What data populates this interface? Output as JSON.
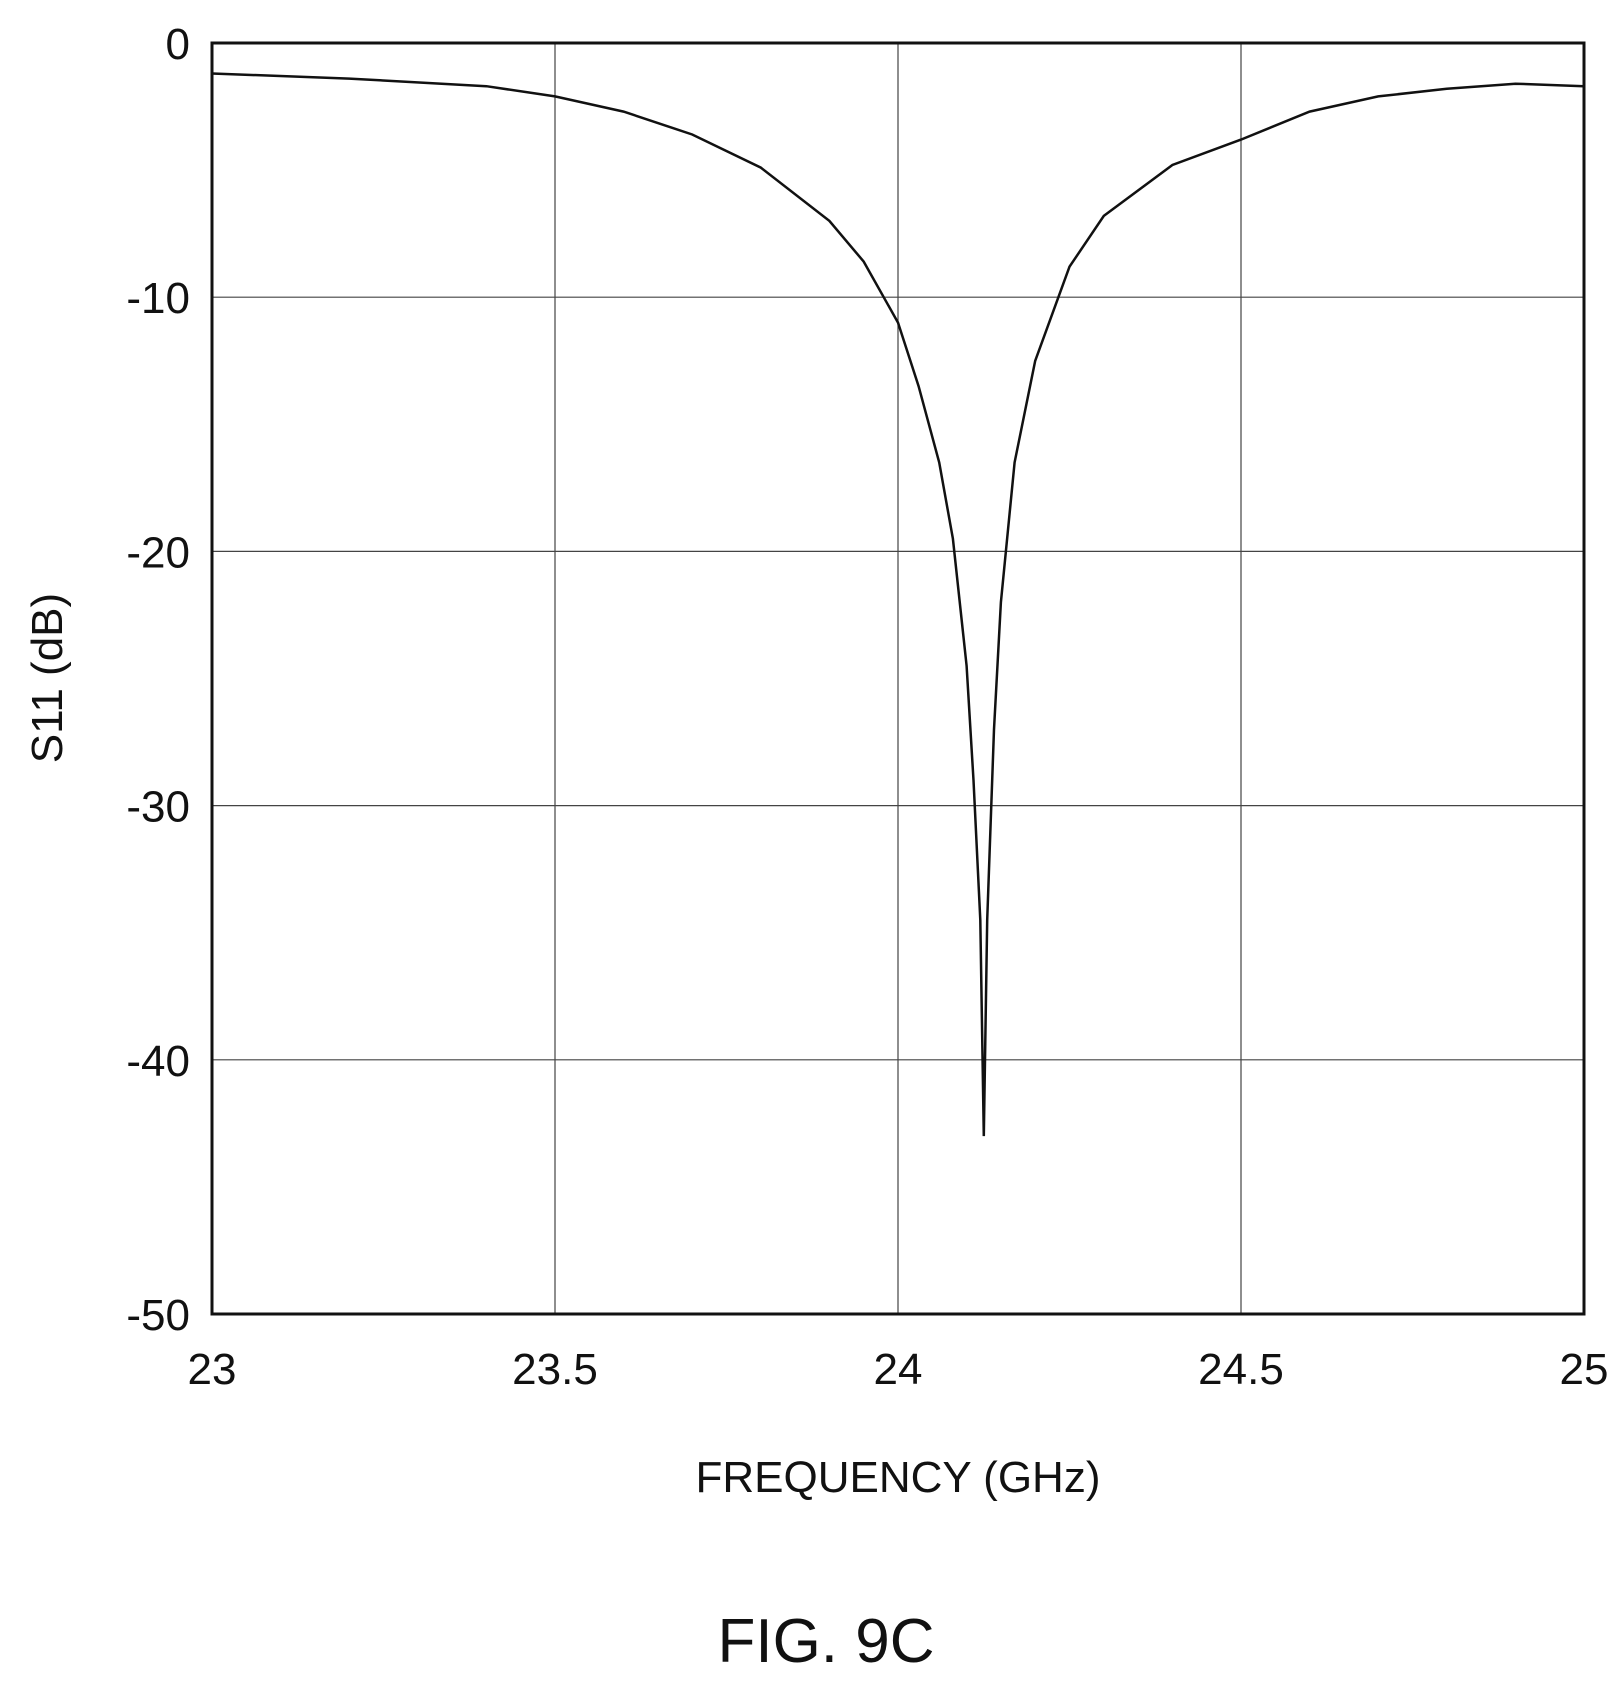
{
  "chart_data": {
    "type": "line",
    "xlabel": "FREQUENCY (GHz)",
    "ylabel": "S11 (dB)",
    "xlim": [
      23,
      25
    ],
    "ylim": [
      -50,
      0
    ],
    "x_ticks": [
      "23",
      "23.5",
      "24",
      "24.5",
      "25"
    ],
    "y_ticks": [
      "0",
      "-10",
      "-20",
      "-30",
      "-40",
      "-50"
    ],
    "grid": true,
    "legend": "none",
    "series": [
      {
        "x": [
          23.0,
          23.2,
          23.4,
          23.5,
          23.6,
          23.7,
          23.8,
          23.9,
          23.95,
          24.0,
          24.03,
          24.06,
          24.08,
          24.1,
          24.11,
          24.12,
          24.125,
          24.13,
          24.14,
          24.15,
          24.17,
          24.2,
          24.25,
          24.3,
          24.4,
          24.5,
          24.6,
          24.7,
          24.8,
          24.9,
          25.0
        ],
        "values": [
          -1.2,
          -1.4,
          -1.7,
          -2.1,
          -2.7,
          -3.6,
          -4.9,
          -7.0,
          -8.6,
          -11.0,
          -13.5,
          -16.5,
          -19.5,
          -24.5,
          -29.0,
          -34.5,
          -43.0,
          -34.5,
          -27.0,
          -22.0,
          -16.5,
          -12.5,
          -8.8,
          -6.8,
          -4.8,
          -3.8,
          -2.7,
          -2.1,
          -1.8,
          -1.6,
          -1.7
        ]
      }
    ],
    "figure_label": "FIG. 9C"
  }
}
